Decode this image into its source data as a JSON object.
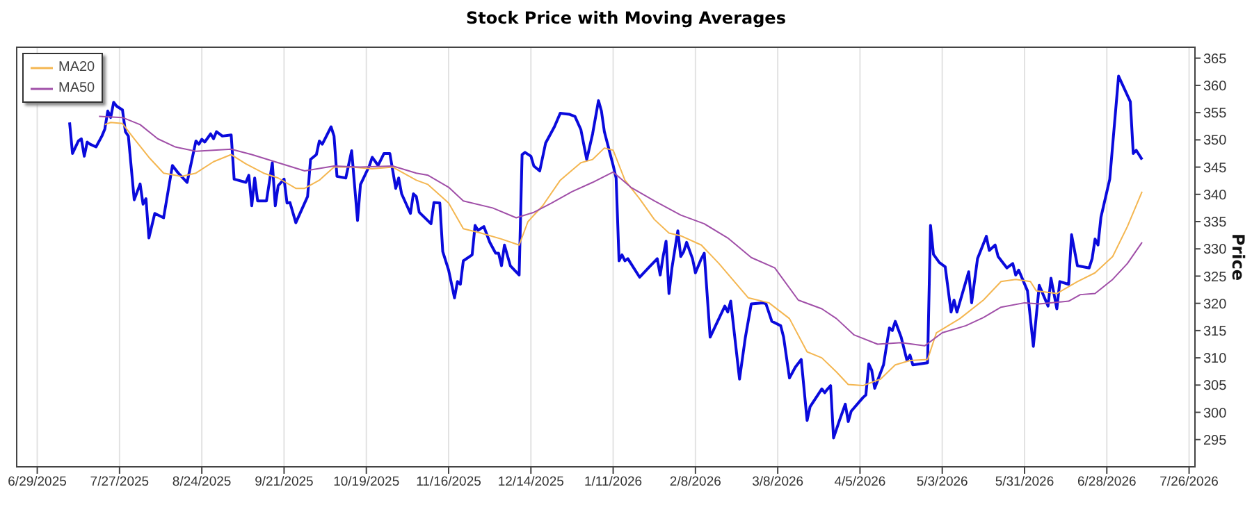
{
  "chart_data": {
    "type": "line",
    "title": "Stock Price with Moving Averages",
    "ylabel": "Price",
    "xlim": [
      "2025-06-22",
      "2026-07-28"
    ],
    "xticks": [
      {
        "value": "2025-06-29",
        "label": "6/29/2025"
      },
      {
        "value": "2025-07-27",
        "label": "7/27/2025"
      },
      {
        "value": "2025-08-24",
        "label": "8/24/2025"
      },
      {
        "value": "2025-09-21",
        "label": "9/21/2025"
      },
      {
        "value": "2025-10-19",
        "label": "10/19/2025"
      },
      {
        "value": "2025-11-16",
        "label": "11/16/2025"
      },
      {
        "value": "2025-12-14",
        "label": "12/14/2025"
      },
      {
        "value": "2026-01-11",
        "label": "1/11/2026"
      },
      {
        "value": "2026-02-08",
        "label": "2/8/2026"
      },
      {
        "value": "2026-03-08",
        "label": "3/8/2026"
      },
      {
        "value": "2026-04-05",
        "label": "4/5/2026"
      },
      {
        "value": "2026-05-03",
        "label": "5/3/2026"
      },
      {
        "value": "2026-05-31",
        "label": "5/31/2026"
      },
      {
        "value": "2026-06-28",
        "label": "6/28/2026"
      },
      {
        "value": "2026-07-26",
        "label": "7/26/2026"
      }
    ],
    "ylim": [
      290,
      367
    ],
    "yticks": [
      295,
      300,
      305,
      310,
      315,
      320,
      325,
      330,
      335,
      340,
      345,
      350,
      355,
      360,
      365
    ],
    "grid": "x",
    "legend": "top left",
    "line_style": "solid",
    "series": [
      {
        "color": "#0a0adc",
        "x": [
          "2025-07-10",
          "2025-07-11",
          "2025-07-13",
          "2025-07-14",
          "2025-07-15",
          "2025-07-16",
          "2025-07-17",
          "2025-07-19",
          "2025-07-21",
          "2025-07-22",
          "2025-07-23",
          "2025-07-24",
          "2025-07-25",
          "2025-07-26",
          "2025-07-28",
          "2025-07-29",
          "2025-07-30",
          "2025-08-01",
          "2025-08-03",
          "2025-08-04",
          "2025-08-05",
          "2025-08-06",
          "2025-08-08",
          "2025-08-11",
          "2025-08-14",
          "2025-08-16",
          "2025-08-19",
          "2025-08-22",
          "2025-08-23",
          "2025-08-24",
          "2025-08-25",
          "2025-08-27",
          "2025-08-28",
          "2025-08-29",
          "2025-08-31",
          "2025-09-03",
          "2025-09-04",
          "2025-09-08",
          "2025-09-09",
          "2025-09-10",
          "2025-09-11",
          "2025-09-12",
          "2025-09-15",
          "2025-09-17",
          "2025-09-18",
          "2025-09-19",
          "2025-09-21",
          "2025-09-22",
          "2025-09-23",
          "2025-09-25",
          "2025-09-29",
          "2025-09-30",
          "2025-10-02",
          "2025-10-03",
          "2025-10-04",
          "2025-10-07",
          "2025-10-08",
          "2025-10-09",
          "2025-10-12",
          "2025-10-14",
          "2025-10-16",
          "2025-10-17",
          "2025-10-20",
          "2025-10-21",
          "2025-10-23",
          "2025-10-25",
          "2025-10-27",
          "2025-10-29",
          "2025-10-30",
          "2025-10-31",
          "2025-11-03",
          "2025-11-04",
          "2025-11-05",
          "2025-11-06",
          "2025-11-10",
          "2025-11-11",
          "2025-11-13",
          "2025-11-14",
          "2025-11-16",
          "2025-11-18",
          "2025-11-19",
          "2025-11-20",
          "2025-11-21",
          "2025-11-24",
          "2025-11-25",
          "2025-11-26",
          "2025-11-28",
          "2025-11-30",
          "2025-12-02",
          "2025-12-03",
          "2025-12-04",
          "2025-12-05",
          "2025-12-07",
          "2025-12-10",
          "2025-12-11",
          "2025-12-12",
          "2025-12-14",
          "2025-12-15",
          "2025-12-17",
          "2025-12-19",
          "2025-12-22",
          "2025-12-24",
          "2025-12-27",
          "2025-12-29",
          "2025-12-31",
          "2026-01-02",
          "2026-01-04",
          "2026-01-06",
          "2026-01-07",
          "2026-01-08",
          "2026-01-11",
          "2026-01-12",
          "2026-01-13",
          "2026-01-14",
          "2026-01-15",
          "2026-01-16",
          "2026-01-20",
          "2026-01-23",
          "2026-01-26",
          "2026-01-27",
          "2026-01-28",
          "2026-01-29",
          "2026-01-30",
          "2026-01-31",
          "2026-02-02",
          "2026-02-03",
          "2026-02-04",
          "2026-02-05",
          "2026-02-07",
          "2026-02-08",
          "2026-02-10",
          "2026-02-11",
          "2026-02-13",
          "2026-02-18",
          "2026-02-19",
          "2026-02-20",
          "2026-02-23",
          "2026-02-25",
          "2026-02-27",
          "2026-03-03",
          "2026-03-04",
          "2026-03-06",
          "2026-03-09",
          "2026-03-10",
          "2026-03-12",
          "2026-03-14",
          "2026-03-16",
          "2026-03-18",
          "2026-03-19",
          "2026-03-23",
          "2026-03-24",
          "2026-03-25",
          "2026-03-26",
          "2026-03-27",
          "2026-03-29",
          "2026-03-31",
          "2026-04-01",
          "2026-04-02",
          "2026-04-06",
          "2026-04-07",
          "2026-04-08",
          "2026-04-09",
          "2026-04-10",
          "2026-04-13",
          "2026-04-15",
          "2026-04-16",
          "2026-04-17",
          "2026-04-19",
          "2026-04-21",
          "2026-04-22",
          "2026-04-23",
          "2026-04-28",
          "2026-04-29",
          "2026-04-30",
          "2026-05-02",
          "2026-05-04",
          "2026-05-06",
          "2026-05-07",
          "2026-05-08",
          "2026-05-12",
          "2026-05-13",
          "2026-05-15",
          "2026-05-18",
          "2026-05-19",
          "2026-05-21",
          "2026-05-22",
          "2026-05-25",
          "2026-05-27",
          "2026-05-28",
          "2026-05-29",
          "2026-06-01",
          "2026-06-03",
          "2026-06-05",
          "2026-06-08",
          "2026-06-09",
          "2026-06-11",
          "2026-06-12",
          "2026-06-15",
          "2026-06-16",
          "2026-06-18",
          "2026-06-22",
          "2026-06-23",
          "2026-06-24",
          "2026-06-25",
          "2026-06-26",
          "2026-06-29",
          "2026-07-02",
          "2026-07-06",
          "2026-07-07",
          "2026-07-08",
          "2026-07-10"
        ],
        "values": [
          353.2,
          347.5,
          349.8,
          350.2,
          347.0,
          349.6,
          349.2,
          348.7,
          350.7,
          352.0,
          355.3,
          354.1,
          356.9,
          356.2,
          355.5,
          351.5,
          350.7,
          339.0,
          341.9,
          338.2,
          339.2,
          332.0,
          336.5,
          335.7,
          345.3,
          343.9,
          342.2,
          349.8,
          349.2,
          350.1,
          349.6,
          351.1,
          350.2,
          351.5,
          350.7,
          350.9,
          342.8,
          342.2,
          343.5,
          337.9,
          343.0,
          338.8,
          338.8,
          345.8,
          337.9,
          341.6,
          342.8,
          338.4,
          338.5,
          334.8,
          339.6,
          346.4,
          347.3,
          349.8,
          349.2,
          352.4,
          350.7,
          343.3,
          343.0,
          348.0,
          335.2,
          341.8,
          345.2,
          346.8,
          345.3,
          347.5,
          347.5,
          341.1,
          343.0,
          340.1,
          336.5,
          340.1,
          339.6,
          336.7,
          334.6,
          338.5,
          338.4,
          329.5,
          326.1,
          321.0,
          324.0,
          323.5,
          327.8,
          328.9,
          334.3,
          333.4,
          334.1,
          331.2,
          329.2,
          329.2,
          326.9,
          330.7,
          326.9,
          325.2,
          347.3,
          347.7,
          347.0,
          345.2,
          344.3,
          349.4,
          352.4,
          354.9,
          354.7,
          354.3,
          351.9,
          346.4,
          351.1,
          357.2,
          355.3,
          351.5,
          345.3,
          343.0,
          327.8,
          328.9,
          327.8,
          328.2,
          324.8,
          326.5,
          328.2,
          325.2,
          328.6,
          331.4,
          321.8,
          326.5,
          333.3,
          328.6,
          329.5,
          331.2,
          328.2,
          325.6,
          328.2,
          329.2,
          313.8,
          319.5,
          318.4,
          320.4,
          306.1,
          313.8,
          319.9,
          320.1,
          319.9,
          316.7,
          315.9,
          313.8,
          306.3,
          308.3,
          309.7,
          298.5,
          301.0,
          304.3,
          303.6,
          304.3,
          304.9,
          295.3,
          298.5,
          301.5,
          298.3,
          300.2,
          302.7,
          303.2,
          308.9,
          307.7,
          304.4,
          308.7,
          315.5,
          315.0,
          316.7,
          313.8,
          309.5,
          310.5,
          308.7,
          309.1,
          334.3,
          329.0,
          327.5,
          326.7,
          318.4,
          320.6,
          318.4,
          325.8,
          320.1,
          328.2,
          332.3,
          329.7,
          330.7,
          328.6,
          326.5,
          327.3,
          325.2,
          326.1,
          322.3,
          312.1,
          323.3,
          319.5,
          324.6,
          319.0,
          324.0,
          323.5,
          332.6,
          326.9,
          326.5,
          328.2,
          331.8,
          330.7,
          335.8,
          342.8,
          361.7,
          357.0,
          347.5,
          348.1,
          346.4
        ]
      },
      {
        "name": "MA20",
        "color": "#f4b650",
        "x": [
          "2025-07-22",
          "2025-07-24",
          "2025-07-28",
          "2025-08-01",
          "2025-08-06",
          "2025-08-11",
          "2025-08-17",
          "2025-08-22",
          "2025-08-28",
          "2025-09-03",
          "2025-09-08",
          "2025-09-14",
          "2025-09-19",
          "2025-09-25",
          "2025-09-28",
          "2025-10-03",
          "2025-10-08",
          "2025-10-14",
          "2025-10-21",
          "2025-10-28",
          "2025-11-05",
          "2025-11-09",
          "2025-11-16",
          "2025-11-21",
          "2025-11-27",
          "2025-12-04",
          "2025-12-10",
          "2025-12-13",
          "2025-12-18",
          "2025-12-24",
          "2025-12-31",
          "2026-01-04",
          "2026-01-08",
          "2026-01-11",
          "2026-01-15",
          "2026-01-20",
          "2026-01-25",
          "2026-01-30",
          "2026-02-03",
          "2026-02-10",
          "2026-02-16",
          "2026-02-26",
          "2026-03-05",
          "2026-03-12",
          "2026-03-18",
          "2026-03-23",
          "2026-03-28",
          "2026-04-01",
          "2026-04-06",
          "2026-04-12",
          "2026-04-17",
          "2026-04-22",
          "2026-04-28",
          "2026-05-01",
          "2026-05-09",
          "2026-05-17",
          "2026-05-23",
          "2026-05-28",
          "2026-06-02",
          "2026-06-04",
          "2026-06-11",
          "2026-06-18",
          "2026-06-24",
          "2026-06-30",
          "2026-07-05",
          "2026-07-10"
        ],
        "values": [
          352.8,
          353.2,
          353.0,
          350.2,
          346.8,
          343.9,
          343.3,
          343.9,
          346.0,
          347.3,
          345.6,
          343.9,
          343.0,
          341.1,
          341.1,
          342.6,
          345.0,
          345.0,
          344.7,
          345.0,
          342.6,
          341.8,
          338.4,
          333.7,
          332.9,
          331.8,
          330.7,
          335.0,
          337.9,
          342.6,
          345.8,
          346.4,
          348.5,
          348.1,
          342.6,
          339.2,
          335.4,
          332.9,
          332.4,
          330.7,
          327.3,
          321.0,
          320.1,
          317.2,
          311.1,
          310.0,
          307.4,
          305.1,
          304.9,
          306.1,
          308.7,
          309.5,
          309.7,
          314.6,
          317.2,
          320.6,
          324.0,
          324.4,
          324.0,
          322.3,
          321.8,
          324.0,
          325.6,
          328.6,
          334.1,
          340.5
        ]
      },
      {
        "name": "MA50",
        "color": "#a04fa8",
        "x": [
          "2025-07-20",
          "2025-07-28",
          "2025-08-03",
          "2025-08-09",
          "2025-08-15",
          "2025-08-22",
          "2025-08-28",
          "2025-09-03",
          "2025-09-10",
          "2025-09-19",
          "2025-09-28",
          "2025-10-08",
          "2025-10-17",
          "2025-10-28",
          "2025-11-05",
          "2025-11-09",
          "2025-11-16",
          "2025-11-21",
          "2025-12-01",
          "2025-12-09",
          "2025-12-15",
          "2025-12-21",
          "2025-12-28",
          "2026-01-04",
          "2026-01-11",
          "2026-01-17",
          "2026-01-25",
          "2026-02-03",
          "2026-02-11",
          "2026-02-19",
          "2026-02-27",
          "2026-03-07",
          "2026-03-15",
          "2026-03-23",
          "2026-03-28",
          "2026-04-03",
          "2026-04-11",
          "2026-04-19",
          "2026-04-27",
          "2026-05-03",
          "2026-05-11",
          "2026-05-17",
          "2026-05-23",
          "2026-05-31",
          "2026-06-05",
          "2026-06-15",
          "2026-06-19",
          "2026-06-24",
          "2026-06-30",
          "2026-07-05",
          "2026-07-10"
        ],
        "values": [
          354.3,
          354.1,
          352.8,
          350.2,
          348.7,
          347.9,
          348.1,
          348.3,
          347.3,
          345.8,
          344.3,
          345.2,
          345.0,
          345.2,
          343.9,
          343.5,
          341.3,
          338.8,
          337.5,
          335.7,
          336.7,
          338.4,
          340.5,
          342.2,
          344.1,
          341.3,
          338.8,
          336.2,
          334.6,
          332.0,
          328.4,
          326.5,
          320.6,
          319.0,
          317.2,
          314.2,
          312.5,
          312.8,
          312.2,
          314.6,
          315.9,
          317.4,
          319.3,
          320.1,
          319.9,
          320.4,
          321.6,
          321.8,
          324.4,
          327.3,
          331.2
        ]
      }
    ]
  }
}
